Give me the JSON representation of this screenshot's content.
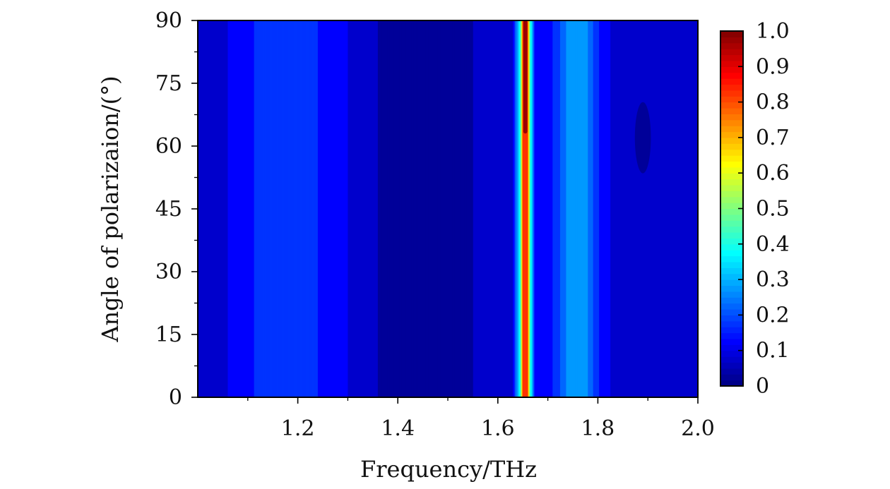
{
  "chart_data": {
    "type": "heatmap",
    "xlabel": "Frequency/THz",
    "ylabel": "Angle of polarizaion/(°)",
    "xlim": [
      1.0,
      2.0
    ],
    "ylim": [
      0,
      90
    ],
    "x_ticks": [
      1.2,
      1.4,
      1.6,
      1.8,
      2.0
    ],
    "x_tick_labels": [
      "1.2",
      "1.4",
      "1.6",
      "1.8",
      "2.0"
    ],
    "y_ticks": [
      0,
      15,
      30,
      45,
      60,
      75,
      90
    ],
    "y_tick_labels": [
      "0",
      "15",
      "30",
      "45",
      "60",
      "75",
      "90"
    ],
    "colorbar": {
      "range": [
        0,
        1.0
      ],
      "ticks": [
        0,
        0.1,
        0.2,
        0.3,
        0.4,
        0.5,
        0.6,
        0.7,
        0.8,
        0.9,
        1.0
      ],
      "tick_labels": [
        "0",
        "0.1",
        "0.2",
        "0.3",
        "0.4",
        "0.5",
        "0.6",
        "0.7",
        "0.8",
        "0.9",
        "1.0"
      ],
      "colormap": "jet"
    },
    "frequency_profile": {
      "x": [
        1.0,
        1.03,
        1.06,
        1.09,
        1.12,
        1.15,
        1.18,
        1.21,
        1.24,
        1.27,
        1.3,
        1.33,
        1.36,
        1.4,
        1.45,
        1.5,
        1.55,
        1.6,
        1.63,
        1.645,
        1.65,
        1.655,
        1.66,
        1.665,
        1.675,
        1.7,
        1.72,
        1.735,
        1.745,
        1.76,
        1.775,
        1.79,
        1.81,
        1.84,
        1.87,
        1.9,
        1.95,
        2.0
      ],
      "values": [
        0.08,
        0.09,
        0.1,
        0.12,
        0.16,
        0.19,
        0.2,
        0.19,
        0.15,
        0.12,
        0.1,
        0.08,
        0.05,
        0.04,
        0.035,
        0.04,
        0.05,
        0.07,
        0.1,
        0.4,
        0.8,
        0.82,
        0.8,
        0.4,
        0.12,
        0.12,
        0.18,
        0.24,
        0.29,
        0.3,
        0.28,
        0.2,
        0.12,
        0.08,
        0.06,
        0.06,
        0.07,
        0.08
      ]
    },
    "peak_region": {
      "x": [
        1.651,
        1.659
      ],
      "y": [
        63,
        90
      ],
      "value": 0.95
    },
    "low_region": {
      "x_center": 1.89,
      "y_center": 62,
      "x_halfwidth": 0.016,
      "y_halfwidth": 8.5,
      "value": 0.01
    }
  }
}
